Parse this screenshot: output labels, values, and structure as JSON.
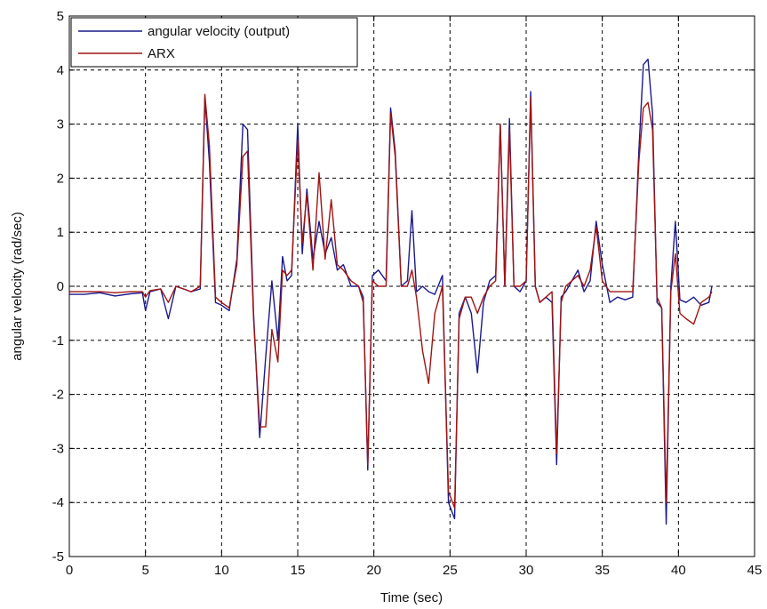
{
  "chart_data": {
    "type": "line",
    "title": "",
    "xlabel": "Time (sec)",
    "ylabel": "angular velocity (rad/sec)",
    "xlim": [
      0,
      45
    ],
    "ylim": [
      -5,
      5
    ],
    "xticks": [
      0,
      5,
      10,
      15,
      20,
      25,
      30,
      35,
      40,
      45
    ],
    "yticks": [
      -5,
      -4,
      -3,
      -2,
      -1,
      0,
      1,
      2,
      3,
      4,
      5
    ],
    "xtick_labels": [
      "0",
      "5",
      "10",
      "15",
      "20",
      "25",
      "30",
      "35",
      "40",
      "45"
    ],
    "ytick_labels": [
      "-5",
      "-4",
      "-3",
      "-2",
      "-1",
      "0",
      "1",
      "2",
      "3",
      "4",
      "5"
    ],
    "grid": true,
    "legend_position": "top-left",
    "series": [
      {
        "name": "angular velocity (output)",
        "color": "#1a1a8c",
        "x": [
          0,
          1,
          2,
          3,
          4,
          4.8,
          5,
          5.3,
          6,
          6.5,
          7,
          7.5,
          8,
          8.6,
          8.9,
          9.2,
          9.6,
          10,
          10.5,
          11,
          11.4,
          11.7,
          12.1,
          12.5,
          12.9,
          13.3,
          13.7,
          14,
          14.3,
          14.6,
          15,
          15.3,
          15.6,
          16,
          16.4,
          16.8,
          17.2,
          17.6,
          18,
          18.5,
          19,
          19.3,
          19.6,
          19.9,
          20.3,
          20.8,
          21.1,
          21.4,
          21.8,
          22.2,
          22.5,
          22.8,
          23.2,
          23.6,
          24,
          24.5,
          24.9,
          25.3,
          25.6,
          26,
          26.4,
          26.8,
          27.2,
          27.6,
          28,
          28.3,
          28.6,
          28.9,
          29.2,
          29.6,
          30,
          30.3,
          30.6,
          30.9,
          31.3,
          31.7,
          32,
          32.3,
          32.6,
          33,
          33.4,
          33.8,
          34.2,
          34.6,
          35,
          35.5,
          36,
          36.5,
          37,
          37.4,
          37.7,
          38,
          38.3,
          38.6,
          38.9,
          39.2,
          39.5,
          39.8,
          40.1,
          40.5,
          41,
          41.5,
          42,
          42.2
        ],
        "values": [
          -0.15,
          -0.15,
          -0.12,
          -0.18,
          -0.14,
          -0.12,
          -0.45,
          -0.1,
          -0.05,
          -0.6,
          0.0,
          -0.05,
          -0.1,
          -0.05,
          3.5,
          2.3,
          -0.3,
          -0.35,
          -0.45,
          0.5,
          3.0,
          2.9,
          -0.5,
          -2.8,
          -1.3,
          0.1,
          -1.0,
          0.55,
          0.1,
          0.2,
          3.0,
          0.6,
          1.8,
          0.5,
          1.2,
          0.6,
          0.9,
          0.3,
          0.4,
          0.0,
          0.0,
          -0.2,
          -3.4,
          0.2,
          0.3,
          0.1,
          3.3,
          2.5,
          0.0,
          0.1,
          1.4,
          -0.1,
          0.0,
          -0.1,
          -0.15,
          0.2,
          -4.0,
          -4.3,
          -0.5,
          -0.2,
          -0.5,
          -1.6,
          -0.3,
          0.1,
          0.2,
          3.0,
          0.0,
          3.1,
          0.0,
          -0.1,
          0.1,
          3.6,
          0.0,
          -0.3,
          -0.2,
          -0.3,
          -3.3,
          -0.2,
          -0.1,
          0.1,
          0.3,
          -0.1,
          0.1,
          1.2,
          0.4,
          -0.3,
          -0.2,
          -0.25,
          -0.2,
          2.5,
          4.1,
          4.2,
          3.2,
          -0.3,
          -0.4,
          -4.4,
          0.0,
          1.2,
          -0.25,
          -0.3,
          -0.2,
          -0.35,
          -0.3,
          0.0
        ]
      },
      {
        "name": "ARX",
        "color": "#a01414",
        "x": [
          0,
          1,
          2,
          3,
          4,
          4.8,
          5,
          5.3,
          6,
          6.5,
          7,
          7.5,
          8,
          8.6,
          8.9,
          9.2,
          9.6,
          10,
          10.5,
          11,
          11.4,
          11.7,
          12.1,
          12.5,
          12.9,
          13.3,
          13.7,
          14,
          14.3,
          14.6,
          15,
          15.3,
          15.6,
          16,
          16.4,
          16.8,
          17.2,
          17.6,
          18,
          18.5,
          19,
          19.3,
          19.6,
          19.9,
          20.3,
          20.8,
          21.1,
          21.4,
          21.8,
          22.2,
          22.5,
          22.8,
          23.2,
          23.6,
          24,
          24.5,
          24.9,
          25.3,
          25.6,
          26,
          26.4,
          26.8,
          27.2,
          27.6,
          28,
          28.3,
          28.6,
          28.9,
          29.2,
          29.6,
          30,
          30.3,
          30.6,
          30.9,
          31.3,
          31.7,
          32,
          32.3,
          32.6,
          33,
          33.4,
          33.8,
          34.2,
          34.6,
          35,
          35.5,
          36,
          36.5,
          37,
          37.4,
          37.7,
          38,
          38.3,
          38.6,
          38.9,
          39.2,
          39.5,
          39.8,
          40.1,
          40.5,
          41,
          41.5,
          42,
          42.2
        ],
        "values": [
          -0.1,
          -0.1,
          -0.1,
          -0.12,
          -0.1,
          -0.1,
          -0.2,
          -0.08,
          -0.05,
          -0.3,
          0.0,
          -0.05,
          -0.1,
          0.0,
          3.55,
          2.6,
          -0.2,
          -0.3,
          -0.4,
          0.4,
          2.4,
          2.5,
          -0.6,
          -2.6,
          -2.6,
          -0.8,
          -1.4,
          0.3,
          0.2,
          0.3,
          2.7,
          0.8,
          1.7,
          0.3,
          2.1,
          0.5,
          1.6,
          0.4,
          0.3,
          0.1,
          0.0,
          -0.3,
          -3.3,
          0.1,
          0.0,
          0.0,
          3.2,
          2.4,
          0.0,
          0.0,
          0.3,
          -0.2,
          -1.2,
          -1.8,
          -0.5,
          0.0,
          -3.8,
          -4.1,
          -0.6,
          -0.2,
          -0.2,
          -0.5,
          -0.2,
          0.0,
          0.1,
          3.0,
          0.0,
          2.9,
          0.0,
          0.0,
          0.1,
          3.5,
          0.0,
          -0.3,
          -0.2,
          -0.1,
          -3.1,
          -0.3,
          0.0,
          0.1,
          0.2,
          0.0,
          0.3,
          1.1,
          0.1,
          -0.1,
          -0.1,
          -0.1,
          -0.1,
          2.3,
          3.3,
          3.4,
          2.9,
          -0.2,
          -0.4,
          -4.0,
          -0.1,
          0.6,
          -0.5,
          -0.6,
          -0.7,
          -0.3,
          -0.2,
          -0.1
        ]
      }
    ]
  }
}
